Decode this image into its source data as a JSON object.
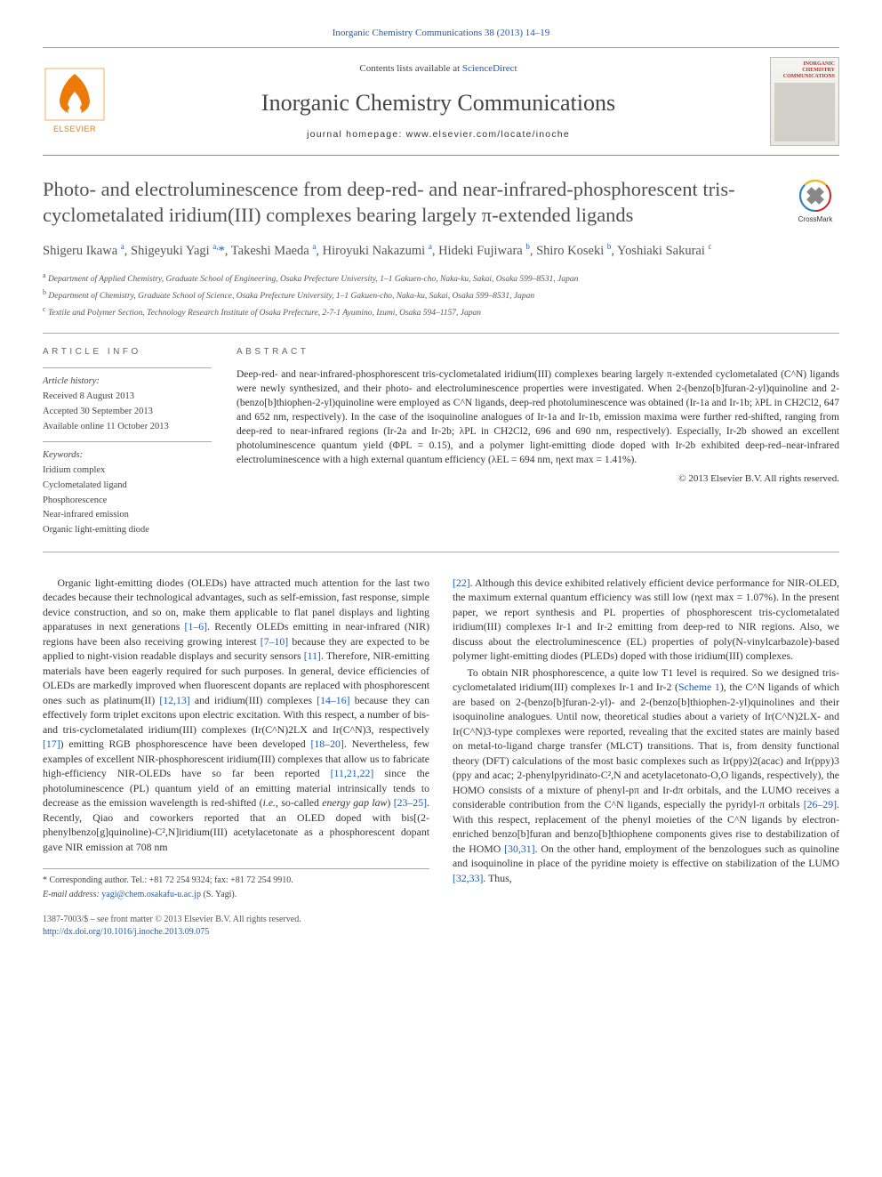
{
  "header": {
    "citation_prefix": "Inorganic Chemistry Communications 38 (2013) 14–19",
    "contents_line_pre": "Contents lists available at ",
    "contents_link": "ScienceDirect",
    "journal_name": "Inorganic Chemistry Communications",
    "homepage_label": "journal homepage: www.elsevier.com/locate/inoche",
    "cover_title": "INORGANIC CHEMISTRY COMMUNICATIONS"
  },
  "crossmark": {
    "label": "CrossMark"
  },
  "title": "Photo- and electroluminescence from deep-red- and near-infrared-phosphorescent tris-cyclometalated iridium(III) complexes bearing largely π-extended ligands",
  "authors_html": "Shigeru Ikawa <sup>a</sup>, Shigeyuki Yagi <sup>a,</sup>*, Takeshi Maeda <sup>a</sup>, Hiroyuki Nakazumi <sup>a</sup>, Hideki Fujiwara <sup>b</sup>, Shiro Koseki <sup>b</sup>, Yoshiaki Sakurai <sup>c</sup>",
  "affiliations": [
    "a Department of Applied Chemistry, Graduate School of Engineering, Osaka Prefecture University, 1–1 Gakuen-cho, Naka-ku, Sakai, Osaka 599–8531, Japan",
    "b Department of Chemistry, Graduate School of Science, Osaka Prefecture University, 1–1 Gakuen-cho, Naka-ku, Sakai, Osaka 599–8531, Japan",
    "c Textile and Polymer Section, Technology Research Institute of Osaka Prefecture, 2-7-1 Ayumino, Izumi, Osaka 594–1157, Japan"
  ],
  "info": {
    "article_info_heading": "ARTICLE INFO",
    "history_label": "Article history:",
    "history": [
      "Received 8 August 2013",
      "Accepted 30 September 2013",
      "Available online 11 October 2013"
    ],
    "keywords_label": "Keywords:",
    "keywords": [
      "Iridium complex",
      "Cyclometalated ligand",
      "Phosphorescence",
      "Near-infrared emission",
      "Organic light-emitting diode"
    ]
  },
  "abstract": {
    "heading": "ABSTRACT",
    "text": "Deep-red- and near-infrared-phosphorescent tris-cyclometalated iridium(III) complexes bearing largely π-extended cyclometalated (C^N) ligands were newly synthesized, and their photo- and electroluminescence properties were investigated. When 2-(benzo[b]furan-2-yl)quinoline and 2-(benzo[b]thiophen-2-yl)quinoline were employed as C^N ligands, deep-red photoluminescence was obtained (Ir-1a and Ir-1b; λPL in CH2Cl2, 647 and 652 nm, respectively). In the case of the isoquinoline analogues of Ir-1a and Ir-1b, emission maxima were further red-shifted, ranging from deep-red to near-infrared regions (Ir-2a and Ir-2b; λPL in CH2Cl2, 696 and 690 nm, respectively). Especially, Ir-2b showed an excellent photoluminescence quantum yield (ΦPL = 0.15), and a polymer light-emitting diode doped with Ir-2b exhibited deep-red–near-infrared electroluminescence with a high external quantum efficiency (λEL = 694 nm, ηext max = 1.41%).",
    "copyright": "© 2013 Elsevier B.V. All rights reserved."
  },
  "body": {
    "left": "Organic light-emitting diodes (OLEDs) have attracted much attention for the last two decades because their technological advantages, such as self-emission, fast response, simple device construction, and so on, make them applicable to flat panel displays and lighting apparatuses in next generations [1–6]. Recently OLEDs emitting in near-infrared (NIR) regions have been also receiving growing interest [7–10] because they are expected to be applied to night-vision readable displays and security sensors [11]. Therefore, NIR-emitting materials have been eagerly required for such purposes. In general, device efficiencies of OLEDs are markedly improved when fluorescent dopants are replaced with phosphorescent ones such as platinum(II) [12,13] and iridium(III) complexes [14–16] because they can effectively form triplet excitons upon electric excitation. With this respect, a number of bis- and tris-cyclometalated iridium(III) complexes (Ir(C^N)2LX and Ir(C^N)3, respectively [17]) emitting RGB phosphorescence have been developed [18–20]. Nevertheless, few examples of excellent NIR-phosphorescent iridium(III) complexes that allow us to fabricate high-efficiency NIR-OLEDs have so far been reported [11,21,22] since the photoluminescence (PL) quantum yield of an emitting material intrinsically tends to decrease as the emission wavelength is red-shifted (i.e., so-called energy gap law) [23–25]. Recently, Qiao and coworkers reported that an OLED doped with bis[(2-phenylbenzo[g]quinoline)-C²,N]iridium(III) acetylacetonate as a phosphorescent dopant gave NIR emission at 708 nm",
    "right": "[22]. Although this device exhibited relatively efficient device performance for NIR-OLED, the maximum external quantum efficiency was still low (ηext max = 1.07%). In the present paper, we report synthesis and PL properties of phosphorescent tris-cyclometalated iridium(III) complexes Ir-1 and Ir-2 emitting from deep-red to NIR regions. Also, we discuss about the electroluminescence (EL) properties of poly(N-vinylcarbazole)-based polymer light-emitting diodes (PLEDs) doped with those iridium(III) complexes.",
    "right_p2": "To obtain NIR phosphorescence, a quite low T1 level is required. So we designed tris-cyclometalated iridium(III) complexes Ir-1 and Ir-2 (Scheme 1), the C^N ligands of which are based on 2-(benzo[b]furan-2-yl)- and 2-(benzo[b]thiophen-2-yl)quinolines and their isoquinoline analogues. Until now, theoretical studies about a variety of Ir(C^N)2LX- and Ir(C^N)3-type complexes were reported, revealing that the excited states are mainly based on metal-to-ligand charge transfer (MLCT) transitions. That is, from density functional theory (DFT) calculations of the most basic complexes such as Ir(ppy)2(acac) and Ir(ppy)3 (ppy and acac; 2-phenylpyridinato-C²,N and acetylacetonato-O,O ligands, respectively), the HOMO consists of a mixture of phenyl-pπ and Ir-dπ orbitals, and the LUMO receives a considerable contribution from the C^N ligands, especially the pyridyl-π orbitals [26–29]. With this respect, replacement of the phenyl moieties of the C^N ligands by electron-enriched benzo[b]furan and benzo[b]thiophene components gives rise to destabilization of the HOMO [30,31]. On the other hand, employment of the benzologues such as quinoline and isoquinoline in place of the pyridine moiety is effective on stabilization of the LUMO [32,33]. Thus,"
  },
  "footnotes": {
    "corr": "* Corresponding author. Tel.: +81 72 254 9324; fax: +81 72 254 9910.",
    "email_label": "E-mail address: ",
    "email": "yagi@chem.osakafu-u.ac.jp",
    "email_suffix": " (S. Yagi)."
  },
  "bottom": {
    "front_matter": "1387-7003/$ – see front matter © 2013 Elsevier B.V. All rights reserved.",
    "doi": "http://dx.doi.org/10.1016/j.inoche.2013.09.075"
  },
  "colors": {
    "link": "#1a5bb8",
    "elsevier_orange": "#ec7a08",
    "heading_gray": "#505050"
  }
}
